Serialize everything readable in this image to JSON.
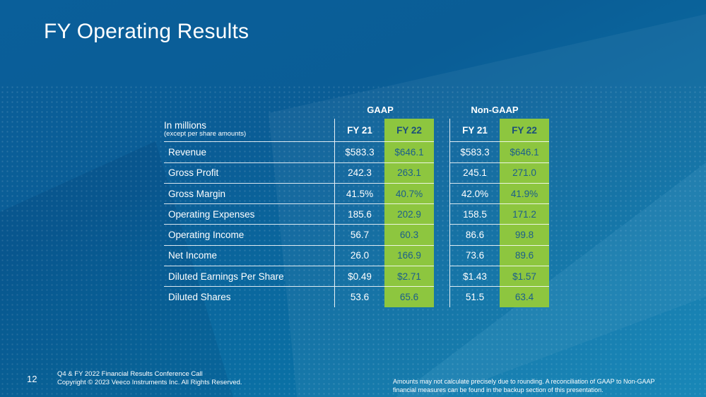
{
  "title": "FY Operating Results",
  "groups": {
    "gaap": "GAAP",
    "non_gaap": "Non-GAAP"
  },
  "header": {
    "label_line1": "In millions",
    "label_line2": "(except per share amounts)",
    "cols": [
      "FY 21",
      "FY 22",
      "FY 21",
      "FY 22"
    ]
  },
  "rows": [
    {
      "label": "Revenue",
      "gaap_fy21": "$583.3",
      "gaap_fy22": "$646.1",
      "ng_fy21": "$583.3",
      "ng_fy22": "$646.1"
    },
    {
      "label": "Gross Profit",
      "gaap_fy21": "242.3",
      "gaap_fy22": "263.1",
      "ng_fy21": "245.1",
      "ng_fy22": "271.0"
    },
    {
      "label": "Gross Margin",
      "gaap_fy21": "41.5%",
      "gaap_fy22": "40.7%",
      "ng_fy21": "42.0%",
      "ng_fy22": "41.9%"
    },
    {
      "label": "Operating Expenses",
      "gaap_fy21": "185.6",
      "gaap_fy22": "202.9",
      "ng_fy21": "158.5",
      "ng_fy22": "171.2"
    },
    {
      "label": "Operating Income",
      "gaap_fy21": "56.7",
      "gaap_fy22": "60.3",
      "ng_fy21": "86.6",
      "ng_fy22": "99.8"
    },
    {
      "label": "Net Income",
      "gaap_fy21": "26.0",
      "gaap_fy22": "166.9",
      "ng_fy21": "73.6",
      "ng_fy22": "89.6"
    },
    {
      "label": "Diluted Earnings Per Share",
      "gaap_fy21": "$0.49",
      "gaap_fy22": "$2.71",
      "ng_fy21": "$1.43",
      "ng_fy22": "$1.57"
    },
    {
      "label": "Diluted Shares",
      "gaap_fy21": "53.6",
      "gaap_fy22": "65.6",
      "ng_fy21": "51.5",
      "ng_fy22": "63.4"
    }
  ],
  "footer": {
    "page_number": "12",
    "left_line1": "Q4 & FY 2022 Financial Results Conference Call",
    "left_line2": "Copyright © 2023 Veeco Instruments Inc. All Rights Reserved.",
    "right_note": "Amounts may not calculate precisely due to rounding.  A reconciliation of GAAP to Non-GAAP financial measures can be found in the backup section of this presentation."
  },
  "colors": {
    "background": "#0a5f9a",
    "highlight": "#8dc63f",
    "highlight_text": "#1b5e8c"
  }
}
